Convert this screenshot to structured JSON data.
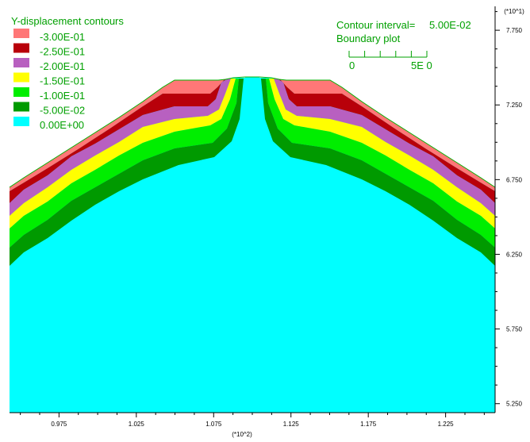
{
  "chart_data": {
    "type": "heatmap",
    "title": "Y-displacement contours",
    "contour_interval_label": "Contour interval=",
    "contour_interval_value": "5.00E-02",
    "boundary_plot_label": "Boundary plot",
    "scale_bar_left_label": "0",
    "scale_bar_right_label": "5E  0",
    "x_multiplier_label": "(*10^2)",
    "y_multiplier_label": "(*10^1)",
    "xlim": [
      0.943,
      1.257
    ],
    "ylim": [
      51.9,
      79.1
    ],
    "x_ticks": [
      0.975,
      1.025,
      1.075,
      1.125,
      1.175,
      1.225
    ],
    "x_tick_labels": [
      "0.975",
      "1.025",
      "1.075",
      "1.125",
      "1.175",
      "1.225"
    ],
    "y_ticks": [
      52.5,
      57.5,
      62.5,
      67.5,
      72.5,
      77.5
    ],
    "y_tick_labels": [
      "5.250",
      "5.750",
      "6.250",
      "6.750",
      "7.250",
      "7.750"
    ],
    "legend": [
      {
        "label": "-3.00E-01",
        "color": "#ff7777"
      },
      {
        "label": "-2.50E-01",
        "color": "#b8000a"
      },
      {
        "label": "-2.00E-01",
        "color": "#b860c0"
      },
      {
        "label": "-1.50E-01",
        "color": "#ffff00"
      },
      {
        "label": "-1.00E-01",
        "color": "#00ee00"
      },
      {
        "label": "-5.00E-02",
        "color": "#009a00"
      },
      {
        "label": "0.00E+00",
        "color": "#00ffff"
      }
    ],
    "levels": [
      -0.3,
      -0.25,
      -0.2,
      -0.15,
      -0.1,
      -0.05,
      0.0
    ],
    "boundary_color": "#00b000",
    "text_color": "#00a000"
  }
}
